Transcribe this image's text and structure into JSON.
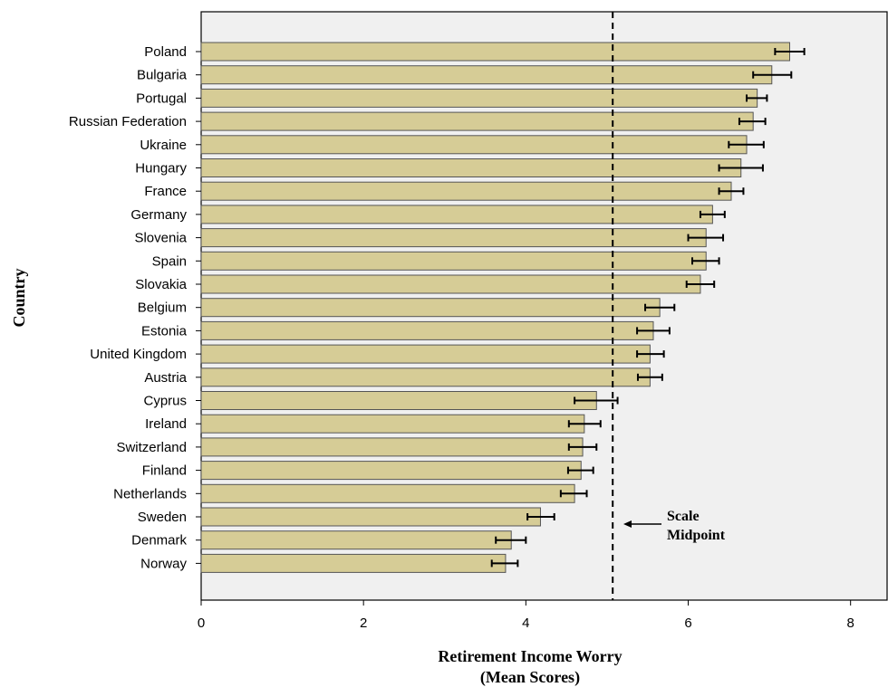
{
  "chart_data": {
    "type": "bar",
    "orientation": "horizontal",
    "categories": [
      "Poland",
      "Bulgaria",
      "Portugal",
      "Russian Federation",
      "Ukraine",
      "Hungary",
      "France",
      "Germany",
      "Slovenia",
      "Spain",
      "Slovakia",
      "Belgium",
      "Estonia",
      "United Kingdom",
      "Austria",
      "Cyprus",
      "Ireland",
      "Switzerland",
      "Finland",
      "Netherlands",
      "Sweden",
      "Denmark",
      "Norway"
    ],
    "values": [
      7.25,
      7.03,
      6.85,
      6.8,
      6.72,
      6.65,
      6.53,
      6.3,
      6.22,
      6.22,
      6.15,
      5.65,
      5.57,
      5.53,
      5.53,
      4.87,
      4.72,
      4.7,
      4.68,
      4.6,
      4.18,
      3.82,
      3.75
    ],
    "error_low": [
      7.07,
      6.8,
      6.72,
      6.63,
      6.5,
      6.38,
      6.38,
      6.15,
      6.0,
      6.05,
      5.98,
      5.47,
      5.37,
      5.37,
      5.38,
      4.6,
      4.53,
      4.53,
      4.52,
      4.43,
      4.02,
      3.63,
      3.58
    ],
    "error_high": [
      7.43,
      7.27,
      6.97,
      6.95,
      6.93,
      6.92,
      6.68,
      6.45,
      6.43,
      6.38,
      6.32,
      5.83,
      5.77,
      5.7,
      5.68,
      5.13,
      4.92,
      4.87,
      4.83,
      4.75,
      4.35,
      4.0,
      3.9
    ],
    "xlabel": "Retirement Income Worry",
    "xlabel_line2": "(Mean Scores)",
    "ylabel": "Country",
    "xlim": [
      0,
      8.45
    ],
    "xticks": [
      0,
      2,
      4,
      6,
      8
    ],
    "midpoint": 5.07,
    "annotation": {
      "line1": "Scale",
      "line2": "Midpoint",
      "arrow_glyph": "←"
    },
    "grid": false,
    "colors": {
      "bar": "#d6cc96",
      "bar_edge": "#555555",
      "plot_bg": "#f0f0f0",
      "error": "#000000"
    }
  }
}
